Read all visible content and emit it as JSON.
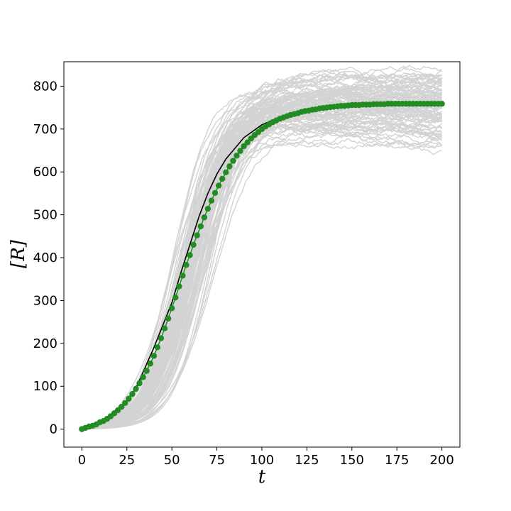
{
  "chart_data": {
    "type": "line",
    "title": "",
    "xlabel": "t",
    "ylabel": "[R]",
    "xlim": [
      -10,
      210
    ],
    "ylim": [
      -42,
      857
    ],
    "xticks": [
      0,
      25,
      50,
      75,
      100,
      125,
      150,
      175,
      200
    ],
    "yticks": [
      0,
      100,
      200,
      300,
      400,
      500,
      600,
      700,
      800
    ],
    "xtick_labels": [
      "0",
      "25",
      "50",
      "75",
      "100",
      "125",
      "150",
      "175",
      "200"
    ],
    "ytick_labels": [
      "0",
      "100",
      "200",
      "300",
      "400",
      "500",
      "600",
      "700",
      "800"
    ],
    "grid": false,
    "colors": {
      "trajectories": "#d3d3d3",
      "deterministic": "#000000",
      "mean_markers": "#228b22"
    },
    "series": [
      {
        "kind": "stochastic_trajectories",
        "style": "line",
        "count": 100,
        "final_value_range": [
          705,
          815
        ],
        "final_value_typical": 760,
        "midpoint_t_range": [
          48,
          75
        ]
      },
      {
        "kind": "deterministic",
        "style": "line",
        "x": [
          0,
          10,
          20,
          30,
          40,
          50,
          55,
          60,
          65,
          70,
          75,
          80,
          90,
          100,
          110,
          120,
          130,
          140,
          150,
          160,
          170,
          180,
          190,
          200
        ],
        "y": [
          0,
          15,
          40,
          95,
          190,
          295,
          365,
          430,
          495,
          550,
          595,
          630,
          680,
          710,
          728,
          740,
          748,
          754,
          757,
          759,
          760,
          761,
          761,
          761
        ]
      },
      {
        "kind": "mean",
        "style": "markers",
        "x": [
          0,
          2,
          4,
          6,
          8,
          10,
          12,
          14,
          16,
          18,
          20,
          22,
          24,
          26,
          28,
          30,
          32,
          34,
          36,
          38,
          40,
          42,
          44,
          46,
          48,
          50,
          52,
          54,
          56,
          58,
          60,
          62,
          64,
          66,
          68,
          70,
          72,
          74,
          76,
          78,
          80,
          82,
          84,
          86,
          88,
          90,
          92,
          94,
          96,
          98,
          100,
          102,
          104,
          106,
          108,
          110,
          112,
          114,
          116,
          118,
          120,
          122,
          124,
          126,
          128,
          130,
          132,
          134,
          136,
          138,
          140,
          142,
          144,
          146,
          148,
          150,
          152,
          154,
          156,
          158,
          160,
          162,
          164,
          166,
          168,
          170,
          172,
          174,
          176,
          178,
          180,
          182,
          184,
          186,
          188,
          190,
          192,
          194,
          196,
          198,
          200
        ],
        "y": [
          0,
          3,
          6,
          8,
          11,
          16,
          19,
          24,
          30,
          37,
          44,
          52,
          61,
          71,
          82,
          94,
          107,
          121,
          136,
          153,
          171,
          191,
          212,
          235,
          258,
          282,
          307,
          333,
          358,
          383,
          406,
          430,
          452,
          473,
          494,
          514,
          533,
          551,
          568,
          584,
          599,
          613,
          626,
          638,
          649,
          660,
          669,
          678,
          686,
          693,
          700,
          706,
          711,
          716,
          720,
          724,
          727,
          730,
          733,
          735,
          737,
          740,
          742,
          743,
          745,
          746,
          748,
          749,
          750,
          751,
          752,
          753,
          754,
          754,
          755,
          756,
          756,
          756,
          757,
          757,
          757,
          758,
          758,
          758,
          758,
          759,
          759,
          759,
          759,
          759,
          759,
          759,
          759,
          759,
          759,
          759,
          759,
          759,
          759,
          759,
          759
        ]
      }
    ]
  }
}
